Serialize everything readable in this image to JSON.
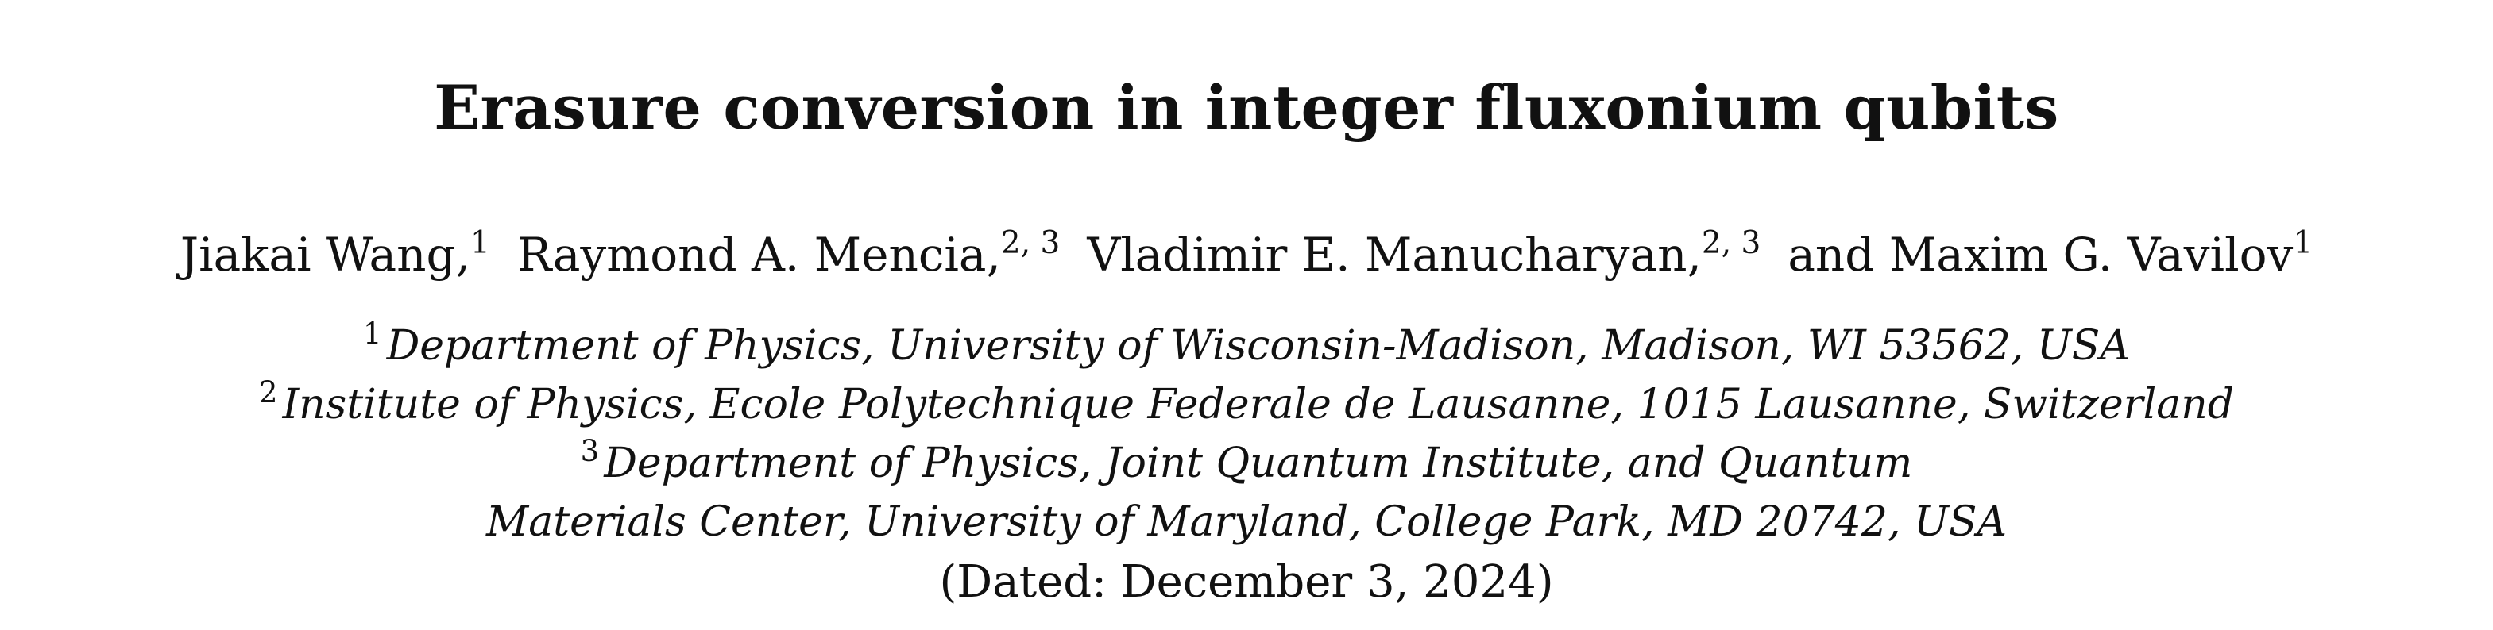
{
  "paper": {
    "title": "Erasure conversion in integer fluxonium qubits",
    "authors": [
      {
        "name": "Jiakai Wang,",
        "affil": "1"
      },
      {
        "name": "Raymond A. Mencia,",
        "affil": "2, 3"
      },
      {
        "name": "Vladimir E. Manucharyan,",
        "affil": "2, 3"
      },
      {
        "name": "and Maxim G. Vavilov",
        "affil": "1"
      }
    ],
    "affiliations": [
      {
        "num": "1",
        "text": "Department of Physics, University of Wisconsin-Madison, Madison, WI 53562, USA"
      },
      {
        "num": "2",
        "text": "Institute of Physics, Ecole Polytechnique Federale de Lausanne, 1015 Lausanne, Switzerland"
      },
      {
        "num": "3",
        "text": "Department of Physics, Joint Quantum Institute, and Quantum"
      },
      {
        "num": "",
        "text": "Materials Center, University of Maryland, College Park, MD 20742, USA"
      }
    ],
    "dated": "(Dated: December 3, 2024)"
  }
}
